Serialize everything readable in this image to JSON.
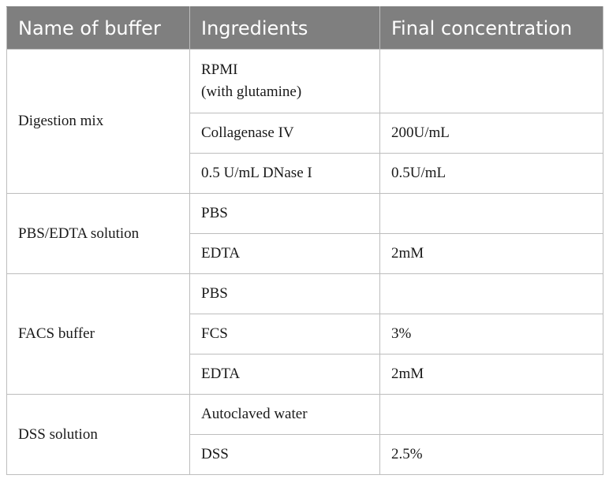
{
  "header": {
    "col1": "Name of buffer",
    "col2": "Ingredients",
    "col3": "Final concentration"
  },
  "groups": [
    {
      "name": "Digestion mix",
      "rows": [
        {
          "ingredient_line1": "RPMI",
          "ingredient_line2": "(with glutamine)",
          "concentration": ""
        },
        {
          "ingredient": "Collagenase IV",
          "concentration": "200U/mL"
        },
        {
          "ingredient": "0.5 U/mL DNase I",
          "concentration": "0.5U/mL"
        }
      ]
    },
    {
      "name": "PBS/EDTA solution",
      "rows": [
        {
          "ingredient": "PBS",
          "concentration": ""
        },
        {
          "ingredient": "EDTA",
          "concentration": "2mM"
        }
      ]
    },
    {
      "name": "FACS buffer",
      "rows": [
        {
          "ingredient": "PBS",
          "concentration": ""
        },
        {
          "ingredient": "FCS",
          "concentration": "3%"
        },
        {
          "ingredient": "EDTA",
          "concentration": "2mM"
        }
      ]
    },
    {
      "name": "DSS solution",
      "rows": [
        {
          "ingredient": "Autoclaved water",
          "concentration": ""
        },
        {
          "ingredient": "DSS",
          "concentration": "2.5%"
        }
      ]
    }
  ]
}
